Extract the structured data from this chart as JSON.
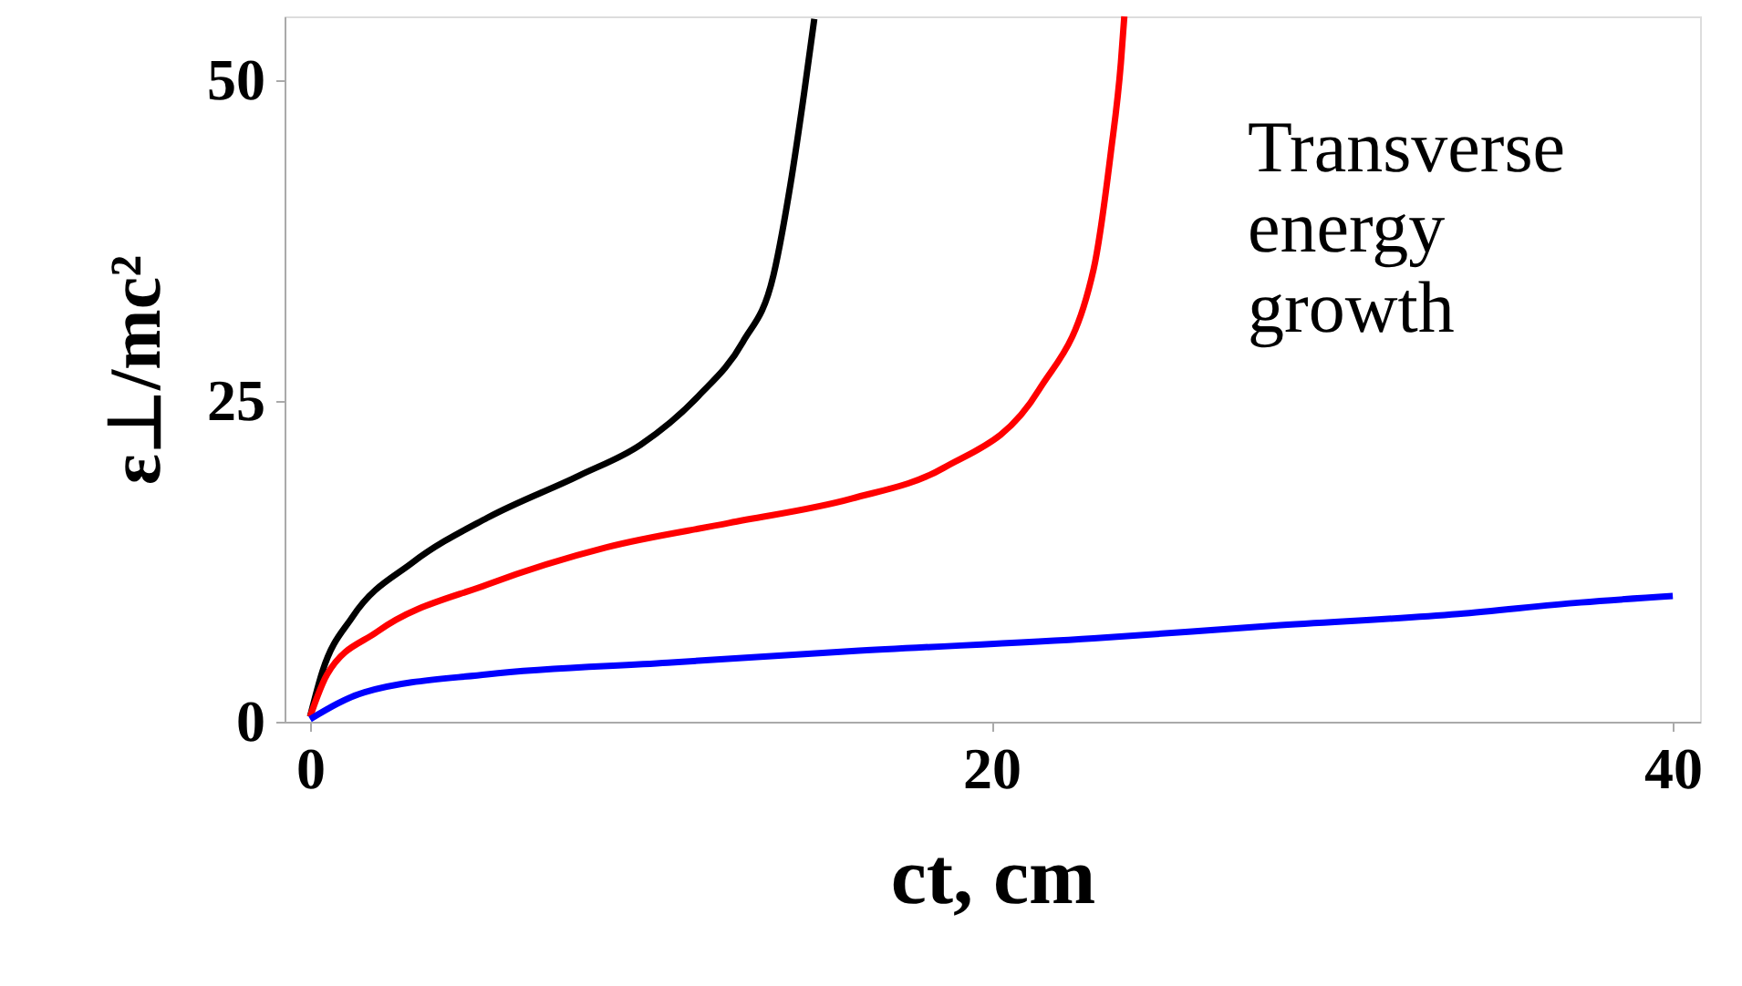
{
  "chart_data": {
    "type": "line",
    "xlabel": "ct, cm",
    "ylabel": "ε⊥/mc²",
    "xlim": [
      -0.75,
      40.8
    ],
    "ylim": [
      0,
      55
    ],
    "xticks": [
      0,
      20,
      40
    ],
    "yticks": [
      0,
      25,
      50
    ],
    "grid": false,
    "marker": "none",
    "line_style": "solid",
    "annotations": [
      "Transverse\nenergy\ngrowth"
    ],
    "series": [
      {
        "color": "#000000",
        "x": [
          0,
          0.36,
          1.25,
          3.0,
          5.2,
          7.9,
          9.7,
          11.4,
          12.7,
          13.6,
          14.1,
          14.5,
          14.8
        ],
        "values": [
          0.4,
          3.9,
          8.2,
          12.4,
          15.9,
          19.2,
          21.6,
          25.4,
          29.6,
          34.8,
          41.9,
          49.0,
          54.8
        ]
      },
      {
        "color": "#ff0000",
        "x": [
          0,
          0.5,
          1.96,
          5.2,
          8.7,
          12.3,
          15.9,
          18.6,
          21.4,
          23.0,
          23.5,
          23.8,
          23.9
        ],
        "values": [
          0.4,
          3.7,
          7.0,
          10.7,
          13.6,
          15.5,
          17.4,
          19.8,
          25.9,
          35.3,
          44.3,
          51.4,
          55
        ]
      },
      {
        "color": "#0000ff",
        "x": [
          0,
          1.6,
          5.2,
          10.5,
          15.9,
          23.0,
          28.3,
          33.7,
          37.3,
          40
        ],
        "values": [
          0.2,
          2.3,
          3.7,
          4.6,
          5.5,
          6.5,
          7.5,
          8.4,
          9.3,
          9.8
        ]
      }
    ]
  }
}
